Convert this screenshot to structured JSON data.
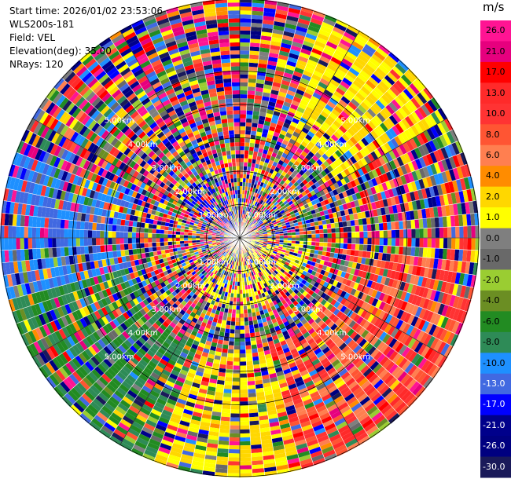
{
  "info": {
    "start_time": "Start time: 2026/01/02 23:53:06",
    "instrument": "WLS200s-181",
    "field": "Field: VEL",
    "elevation": "Elevation(deg): 35.00",
    "nrays": "NRays: 120"
  },
  "chart_data": {
    "type": "heatmap",
    "projection": "polar PPI",
    "field": "VEL",
    "units": "m/s",
    "nrays": 120,
    "elevation_deg": 35.0,
    "range_rings_km": [
      "1.00km",
      "2.00km",
      "3.00km",
      "4.00km",
      "5.00km"
    ],
    "ring_km": [
      1,
      2,
      3,
      4,
      5
    ],
    "max_range_km": 7.1,
    "colorbar": {
      "title": "m/s",
      "ticks": [
        "26.0",
        "21.0",
        "17.0",
        "13.0",
        "10.0",
        "8.0",
        "6.0",
        "4.0",
        "2.0",
        "1.0",
        "0.0",
        "-1.0",
        "-2.0",
        "-4.0",
        "-6.0",
        "-8.0",
        "-10.0",
        "-13.0",
        "-17.0",
        "-21.0",
        "-26.0",
        "-30.0"
      ],
      "colors": [
        "#ff1493",
        "#e6007e",
        "#ff0000",
        "#ff2a2a",
        "#ff3333",
        "#ff5533",
        "#ff7f50",
        "#ff8c00",
        "#ffd700",
        "#ffff00",
        "#7f7f7f",
        "#696969",
        "#9acd32",
        "#6b8e23",
        "#228b22",
        "#2e8b57",
        "#1e90ff",
        "#4169e1",
        "#0000ff",
        "#00008b",
        "#000080",
        "#1a1a5a"
      ],
      "tick_text_colors": [
        "#000",
        "#000",
        "#000",
        "#000",
        "#000",
        "#000",
        "#000",
        "#000",
        "#000",
        "#000",
        "#000",
        "#000",
        "#000",
        "#000",
        "#000",
        "#000",
        "#000",
        "#fff",
        "#fff",
        "#fff",
        "#fff",
        "#fff"
      ]
    }
  }
}
